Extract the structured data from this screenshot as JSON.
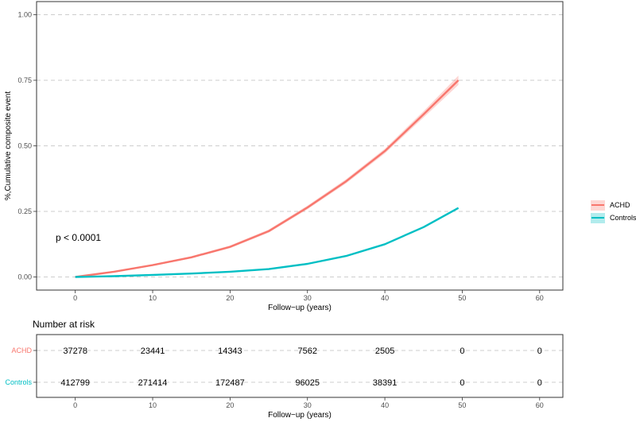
{
  "chart_data": [
    {
      "type": "line",
      "title": "",
      "xlabel": "Follow−up (years)",
      "ylabel": "%,Cumulative composite event",
      "xlim": [
        -5,
        63
      ],
      "ylim": [
        -0.05,
        1.05
      ],
      "x_ticks": [
        0,
        10,
        20,
        30,
        40,
        50,
        60
      ],
      "x_tick_labels": [
        "0",
        "10",
        "20",
        "30",
        "40",
        "50",
        "60"
      ],
      "y_ticks": [
        0,
        0.25,
        0.5,
        0.75,
        1.0
      ],
      "y_tick_labels": [
        "0.00",
        "0.25",
        "0.50",
        "0.75",
        "1.00"
      ],
      "grid": "horizontal-dashed",
      "legend": "right",
      "annotation": "p < 0.0001",
      "series": [
        {
          "name": "ACHD",
          "color": "#f8766d",
          "x": [
            0,
            5,
            10,
            15,
            20,
            25,
            30,
            35,
            40,
            45,
            49.5
          ],
          "y": [
            0,
            0.02,
            0.045,
            0.075,
            0.115,
            0.175,
            0.265,
            0.365,
            0.48,
            0.62,
            0.75
          ],
          "ci_halfwidth": [
            0,
            0.002,
            0.003,
            0.004,
            0.005,
            0.006,
            0.007,
            0.008,
            0.009,
            0.012,
            0.018
          ]
        },
        {
          "name": "Controls",
          "color": "#00bfc4",
          "x": [
            0,
            5,
            10,
            15,
            20,
            25,
            30,
            35,
            40,
            45,
            49.5
          ],
          "y": [
            0,
            0.003,
            0.008,
            0.013,
            0.02,
            0.03,
            0.05,
            0.08,
            0.125,
            0.19,
            0.263
          ],
          "ci_halfwidth": [
            0,
            0,
            0.0005,
            0.0008,
            0.001,
            0.0015,
            0.002,
            0.002,
            0.0025,
            0.003,
            0.004
          ]
        }
      ]
    },
    {
      "type": "table",
      "title": "Number at risk",
      "xlabel": "Follow−up (years)",
      "x_ticks": [
        0,
        10,
        20,
        30,
        40,
        50,
        60
      ],
      "x_tick_labels": [
        "0",
        "10",
        "20",
        "30",
        "40",
        "50",
        "60"
      ],
      "rows": [
        {
          "name": "ACHD",
          "color": "#f8766d",
          "values": [
            "37278",
            "23441",
            "14343",
            "7562",
            "2505",
            "0",
            "0"
          ]
        },
        {
          "name": "Controls",
          "color": "#00bfc4",
          "values": [
            "412799",
            "271414",
            "172487",
            "96025",
            "38391",
            "0",
            "0"
          ]
        }
      ]
    }
  ]
}
